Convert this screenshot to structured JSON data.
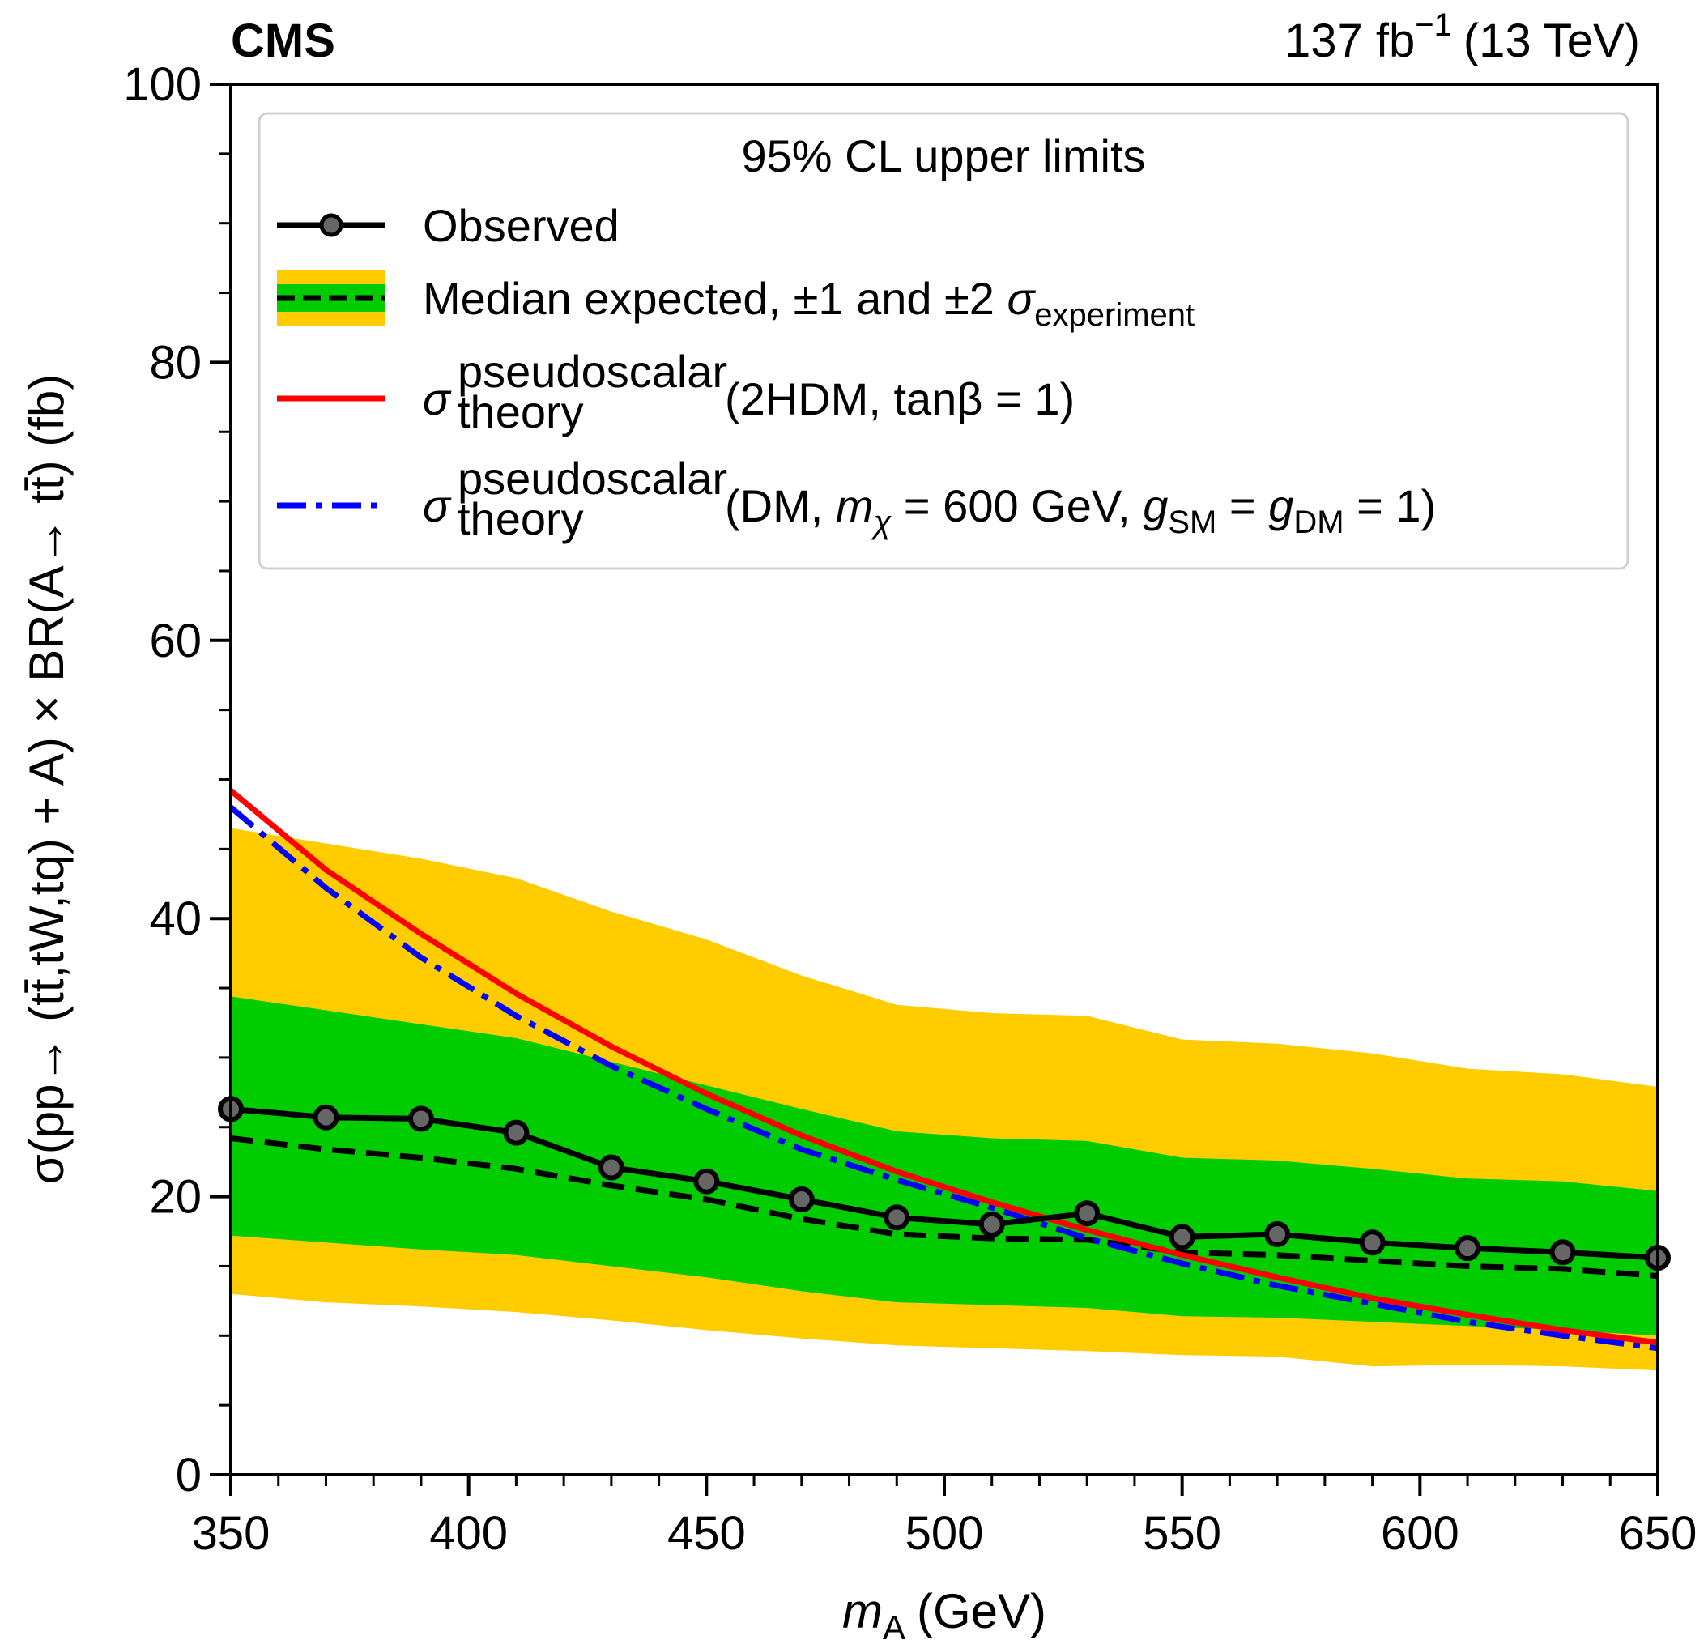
{
  "chart_data": {
    "type": "line",
    "experiment": "CMS",
    "lumi": "137 fb",
    "lumi_exp": "−1",
    "energy": "(13 TeV)",
    "xlabel_var": "m",
    "xlabel_sub": "A",
    "xlabel_unit": "(GeV)",
    "ylabel": "σ(pp→ (tt̄,tW,tq) + A) × BR(A→ tt̄) (fb)",
    "xlim": [
      350,
      650
    ],
    "ylim": [
      0,
      100
    ],
    "xticks": [
      350,
      400,
      450,
      500,
      550,
      600,
      650
    ],
    "yticks": [
      0,
      20,
      40,
      60,
      80,
      100
    ],
    "legend": {
      "title": "95% CL upper limits",
      "placement": "top",
      "entries": {
        "observed": "Observed",
        "expected": "Median expected, ±1 and ±2 ",
        "expected_sigma": "σ",
        "expected_sub": "experiment",
        "theory_sigma": "σ",
        "theory_sup": "pseudoscalar",
        "theory_sub": "theory",
        "thdm_rest": "(2HDM, tanβ = 1)",
        "dm_rest_1": "(DM, ",
        "dm_m": "m",
        "dm_chi": "χ",
        "dm_rest_2": " = 600 GeV, ",
        "dm_g": "g",
        "dm_sm": "SM",
        "dm_eq": " = ",
        "dm_dm": "DM",
        "dm_end": " = 1)"
      }
    },
    "x": [
      350,
      370,
      390,
      410,
      430,
      450,
      470,
      490,
      510,
      530,
      550,
      570,
      590,
      610,
      630,
      650
    ],
    "series": [
      {
        "name": "Observed",
        "values": [
          26.3,
          25.7,
          25.6,
          24.6,
          22.1,
          21.1,
          19.8,
          18.5,
          18.0,
          18.8,
          17.1,
          17.3,
          16.7,
          16.3,
          16.0,
          15.6
        ]
      },
      {
        "name": "Median expected",
        "values": [
          24.2,
          23.4,
          22.8,
          22.0,
          20.8,
          19.8,
          18.4,
          17.3,
          17.0,
          16.9,
          16.0,
          15.8,
          15.4,
          15.0,
          14.8,
          14.3
        ]
      },
      {
        "name": "σ theory pseudoscalar (2HDM, tanβ = 1)",
        "values": [
          49.2,
          43.5,
          38.9,
          34.6,
          30.8,
          27.4,
          24.4,
          21.8,
          19.6,
          17.6,
          15.8,
          14.2,
          12.7,
          11.5,
          10.4,
          9.5
        ]
      },
      {
        "name": "σ theory pseudoscalar (DM, mχ = 600 GeV, gSM = gDM = 1)",
        "values": [
          48.0,
          42.2,
          37.2,
          33.0,
          29.4,
          26.3,
          23.4,
          21.2,
          19.2,
          17.0,
          15.2,
          13.6,
          12.3,
          11.0,
          10.0,
          9.1
        ]
      }
    ],
    "bands": {
      "minus2": [
        13.0,
        12.4,
        12.1,
        11.7,
        11.1,
        10.4,
        9.8,
        9.3,
        9.1,
        8.9,
        8.6,
        8.5,
        7.8,
        7.9,
        7.8,
        7.5
      ],
      "minus1": [
        17.2,
        16.7,
        16.2,
        15.8,
        15.0,
        14.2,
        13.2,
        12.4,
        12.2,
        12.0,
        11.4,
        11.3,
        11.0,
        10.7,
        10.4,
        10.0
      ],
      "plus1": [
        34.4,
        33.4,
        32.4,
        31.4,
        29.7,
        28.0,
        26.3,
        24.7,
        24.2,
        24.0,
        22.8,
        22.6,
        22.0,
        21.3,
        21.1,
        20.4
      ],
      "plus2": [
        46.5,
        45.4,
        44.3,
        42.9,
        40.5,
        38.5,
        35.9,
        33.8,
        33.2,
        33.0,
        31.3,
        31.0,
        30.3,
        29.2,
        28.8,
        27.9
      ]
    },
    "colors": {
      "band2": "#ffcc00",
      "band1": "#00cc00",
      "observed": "#000000",
      "expected": "#000000",
      "thdm": "#ff0000",
      "dm": "#0000ff"
    }
  }
}
